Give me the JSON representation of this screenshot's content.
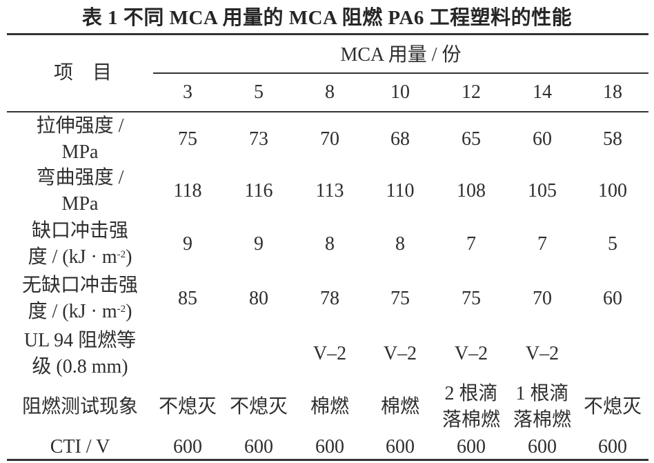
{
  "table": {
    "title": "表 1   不同 MCA 用量的 MCA 阻燃 PA6 工程塑料的性能",
    "header": {
      "item_label": "项    目",
      "group_label": "MCA 用量 / 份",
      "columns": [
        "3",
        "5",
        "8",
        "10",
        "12",
        "14",
        "18"
      ]
    },
    "rows": [
      {
        "label_line1": "拉伸强度 /",
        "label_line2": "MPa",
        "values": [
          "75",
          "73",
          "70",
          "68",
          "65",
          "60",
          "58"
        ]
      },
      {
        "label_line1": "弯曲强度 /",
        "label_line2": "MPa",
        "values": [
          "118",
          "116",
          "113",
          "110",
          "108",
          "105",
          "100"
        ]
      },
      {
        "label_line1": "缺口冲击强",
        "label_line2": "度 / (kJ · m",
        "label_sup": "-2",
        "label_tail": ")",
        "values": [
          "9",
          "9",
          "8",
          "8",
          "7",
          "7",
          "5"
        ]
      },
      {
        "label_line1": "无缺口冲击强",
        "label_line2": "度 / (kJ · m",
        "label_sup": "-2",
        "label_tail": ")",
        "values": [
          "85",
          "80",
          "78",
          "75",
          "75",
          "70",
          "60"
        ]
      },
      {
        "label_line1": "UL 94 阻燃等",
        "label_line2": "级 (0.8  mm)",
        "values": [
          "",
          "",
          "V–2",
          "V–2",
          "V–2",
          "V–2",
          ""
        ]
      },
      {
        "label_line1": "阻燃测试现象",
        "label_line2": "",
        "values": [
          "不熄灭",
          "不熄灭",
          "棉燃",
          "棉燃",
          "2 根滴\n落棉燃",
          "1 根滴\n落棉燃",
          "不熄灭"
        ],
        "values_split": [
          [
            "不熄灭"
          ],
          [
            "不熄灭"
          ],
          [
            "棉燃"
          ],
          [
            "棉燃"
          ],
          [
            "2 根滴",
            "落棉燃"
          ],
          [
            "1 根滴",
            "落棉燃"
          ],
          [
            "不熄灭"
          ]
        ]
      },
      {
        "label_line1": "CTI / V",
        "label_line2": "",
        "values": [
          "600",
          "600",
          "600",
          "600",
          "600",
          "600",
          "600"
        ]
      }
    ]
  }
}
